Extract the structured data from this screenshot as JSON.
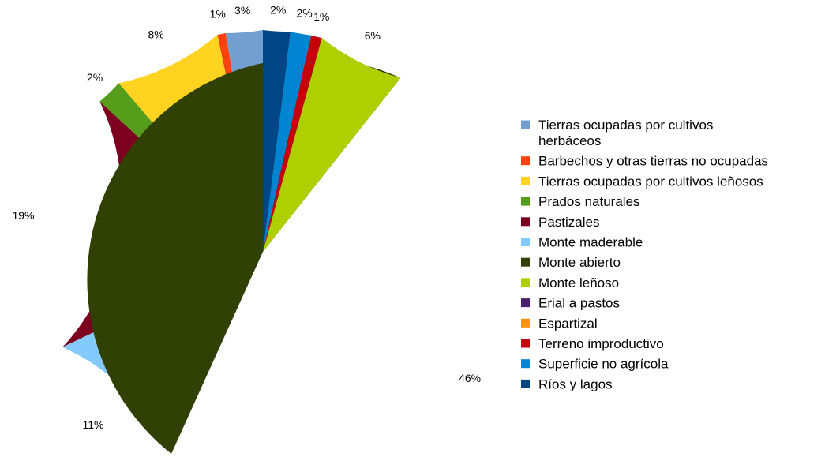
{
  "chart_data": {
    "type": "pie",
    "title": "",
    "legend_position": "right",
    "slices": [
      {
        "label": "Tierras ocupadas por cultivos herbáceos",
        "legend_lines": [
          "Tierras ocupadas por cultivos",
          "herbáceos"
        ],
        "value": 2.7,
        "display": "3%",
        "color": "#729fcf"
      },
      {
        "label": "Barbechos y otras tierras no ocupadas",
        "legend_lines": [
          "Barbechos y otras tierras no ocupadas"
        ],
        "value": 0.6,
        "display": "1%",
        "color": "#ff420e"
      },
      {
        "label": "Tierras ocupadas por cultivos leñosos",
        "legend_lines": [
          "Tierras ocupadas por cultivos leñosos"
        ],
        "value": 8.0,
        "display": "8%",
        "color": "#ffd320"
      },
      {
        "label": "Prados naturales",
        "legend_lines": [
          "Prados naturales"
        ],
        "value": 1.9,
        "display": "2%",
        "color": "#579d1c"
      },
      {
        "label": "Pastizales",
        "legend_lines": [
          "Pastizales"
        ],
        "value": 19.0,
        "display": "19%",
        "color": "#7e0021"
      },
      {
        "label": "Monte maderable",
        "legend_lines": [
          "Monte maderable"
        ],
        "value": 11.2,
        "display": "11%",
        "color": "#83caff"
      },
      {
        "label": "Monte abierto",
        "legend_lines": [
          "Monte abierto"
        ],
        "value": 46.3,
        "display": "46%",
        "color": "#314004"
      },
      {
        "label": "Monte leñoso",
        "legend_lines": [
          "Monte leñoso"
        ],
        "value": 6.4,
        "display": "6%",
        "color": "#aecf00"
      },
      {
        "label": "Erial a pastos",
        "legend_lines": [
          "Erial a pastos"
        ],
        "value": 0.0,
        "display": "",
        "color": "#4b1f6f"
      },
      {
        "label": "Espartizal",
        "legend_lines": [
          "Espartizal"
        ],
        "value": 0.0,
        "display": "",
        "color": "#ff950e"
      },
      {
        "label": "Terreno improductivo",
        "legend_lines": [
          "Terreno improductivo"
        ],
        "value": 0.8,
        "display": "1%",
        "color": "#c5000b"
      },
      {
        "label": "Superficie no agrícola",
        "legend_lines": [
          "Superficie no agrícola"
        ],
        "value": 1.5,
        "display": "2%",
        "color": "#0084d1"
      },
      {
        "label": "Ríos y lagos",
        "legend_lines": [
          "Ríos y lagos"
        ],
        "value": 2.0,
        "display": "2%",
        "color": "#004586"
      }
    ]
  }
}
